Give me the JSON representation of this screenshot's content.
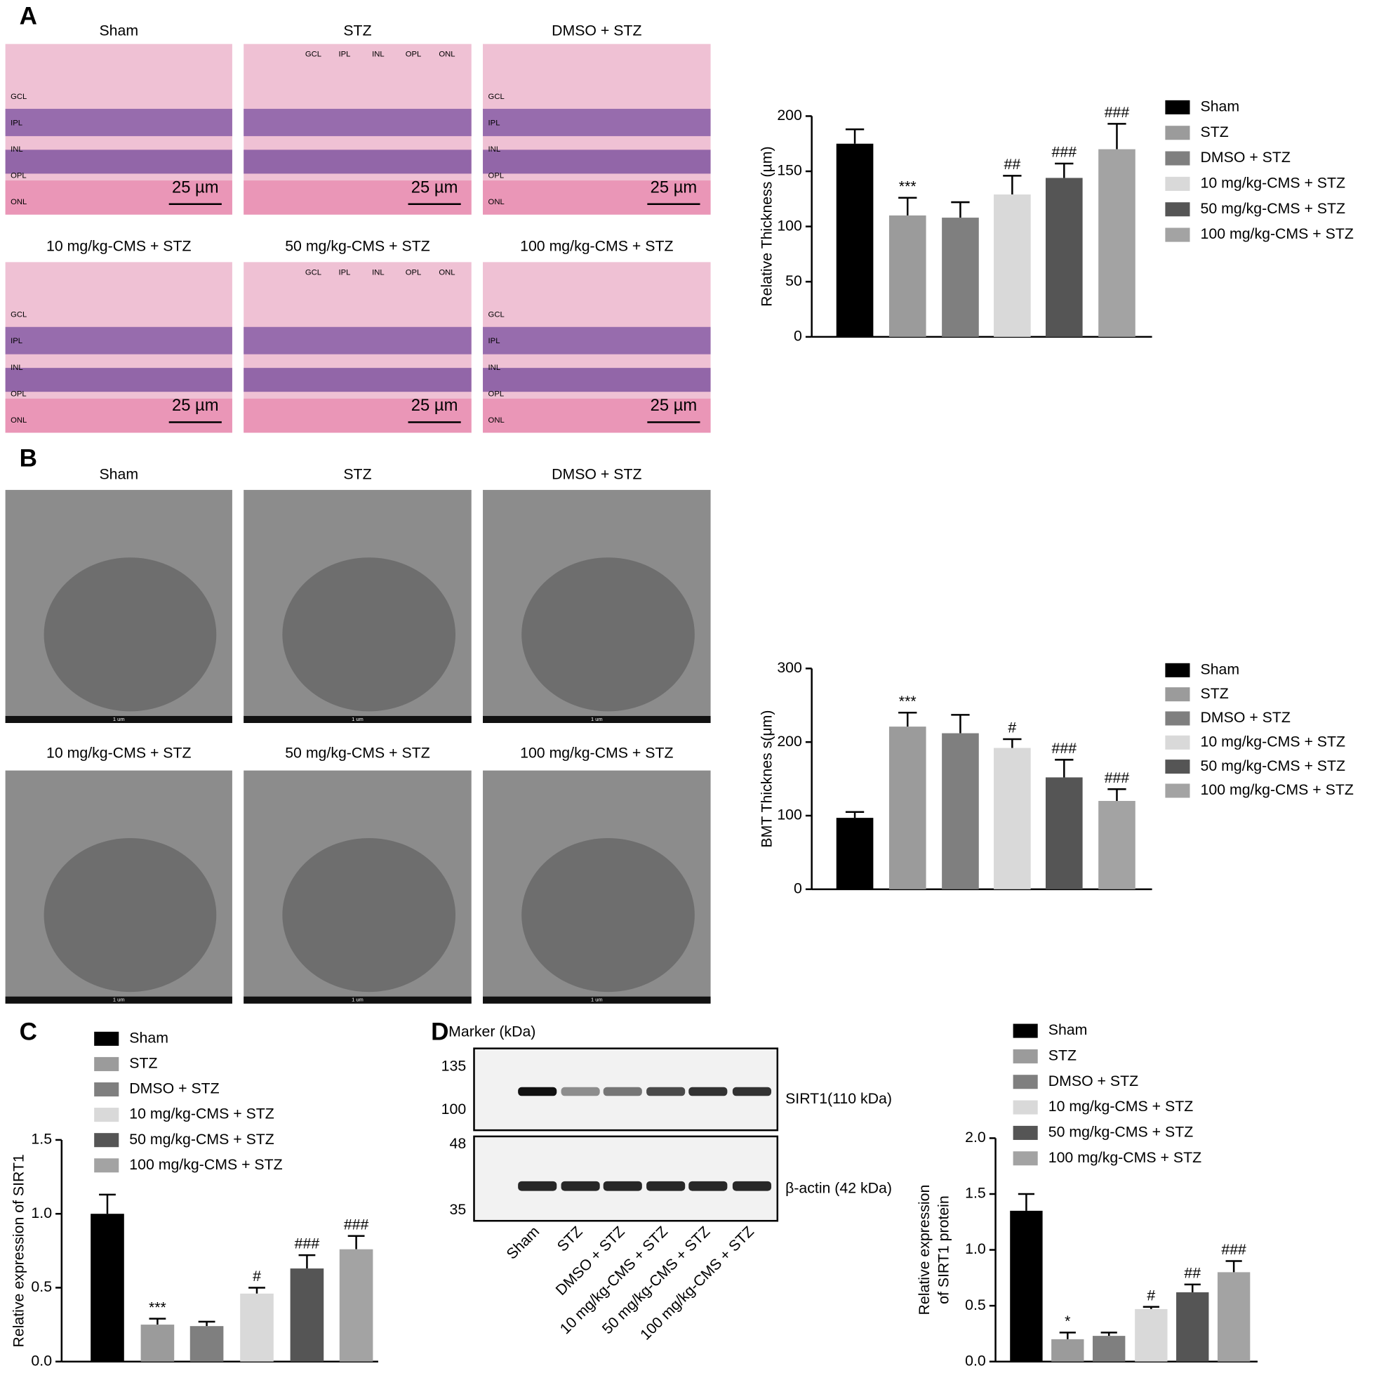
{
  "panel_labels": [
    "A",
    "B",
    "C",
    "D"
  ],
  "micrographs_a": [
    {
      "title": "Sham",
      "scale_label": "25 µm",
      "layers": [
        "GCL",
        "IPL",
        "INL",
        "OPL",
        "ONL"
      ]
    },
    {
      "title": "STZ",
      "scale_label": "25 µm",
      "layers": [
        "GCL",
        "IPL",
        "INL",
        "OPL",
        "ONL"
      ]
    },
    {
      "title": "DMSO + STZ",
      "scale_label": "25 µm",
      "layers": [
        "GCL",
        "IPL",
        "INL",
        "OPL",
        "ONL"
      ]
    },
    {
      "title": "10 mg/kg-CMS + STZ",
      "scale_label": "25 µm",
      "layers": [
        "GCL",
        "IPL",
        "INL",
        "OPL",
        "ONL"
      ]
    },
    {
      "title": "50 mg/kg-CMS + STZ",
      "scale_label": "25 µm",
      "layers": [
        "GCL",
        "IPL",
        "INL",
        "OPL",
        "ONL"
      ]
    },
    {
      "title": "100 mg/kg-CMS + STZ",
      "scale_label": "25 µm",
      "layers": [
        "GCL",
        "IPL",
        "INL",
        "OPL",
        "ONL"
      ]
    }
  ],
  "micrographs_b": [
    {
      "title": "Sham",
      "scale_label": "1 um"
    },
    {
      "title": "STZ",
      "scale_label": "1 um"
    },
    {
      "title": "DMSO + STZ",
      "scale_label": "1 um"
    },
    {
      "title": "10 mg/kg-CMS + STZ",
      "scale_label": "1 um"
    },
    {
      "title": "50 mg/kg-CMS + STZ",
      "scale_label": "1 um"
    },
    {
      "title": "100 mg/kg-CMS + STZ",
      "scale_label": "1 um"
    }
  ],
  "western_blot": {
    "marker_title": "Marker (kDa)",
    "markers": [
      135,
      100,
      48,
      35
    ],
    "bands": [
      "SIRT1(110 kDa)",
      "β-actin (42 kDa)"
    ],
    "lanes": [
      "Sham",
      "STZ",
      "DMSO + STZ",
      "10 mg/kg-CMS + STZ",
      "50 mg/kg-CMS + STZ",
      "100 mg/kg-CMS + STZ"
    ]
  },
  "chart_data": [
    {
      "type": "bar",
      "ylabel": "Relative Thickness (µm)",
      "categories": [
        "Sham",
        "STZ",
        "DMSO + STZ",
        "10 mg/kg-CMS + STZ",
        "50 mg/kg-CMS + STZ",
        "100 mg/kg-CMS + STZ"
      ],
      "colors": [
        "#000000",
        "#9b9b9b",
        "#7f7f7f",
        "#d9d9d9",
        "#555555",
        "#a3a3a3"
      ],
      "values": [
        175,
        110,
        108,
        129,
        144,
        170
      ],
      "errors": [
        13,
        16,
        14,
        17,
        13,
        23
      ],
      "annotations": [
        null,
        "***",
        null,
        "##",
        "###",
        "###"
      ],
      "ylim": [
        0,
        200
      ],
      "yticks": [
        0,
        50,
        100,
        150,
        200
      ]
    },
    {
      "type": "bar",
      "ylabel": "BMT Thicknes s(μm)",
      "categories": [
        "Sham",
        "STZ",
        "DMSO + STZ",
        "10 mg/kg-CMS + STZ",
        "50 mg/kg-CMS + STZ",
        "100 mg/kg-CMS + STZ"
      ],
      "colors": [
        "#000000",
        "#9b9b9b",
        "#7f7f7f",
        "#d9d9d9",
        "#555555",
        "#a3a3a3"
      ],
      "values": [
        97,
        221,
        212,
        192,
        152,
        120
      ],
      "errors": [
        8,
        19,
        25,
        12,
        24,
        16
      ],
      "annotations": [
        null,
        "***",
        null,
        "#",
        "###",
        "###"
      ],
      "ylim": [
        0,
        300
      ],
      "yticks": [
        0,
        100,
        200,
        300
      ]
    },
    {
      "type": "bar",
      "ylabel": "Relative expression of SIRT1",
      "categories": [
        "Sham",
        "STZ",
        "DMSO + STZ",
        "10 mg/kg-CMS + STZ",
        "50 mg/kg-CMS + STZ",
        "100 mg/kg-CMS + STZ"
      ],
      "colors": [
        "#000000",
        "#9b9b9b",
        "#7f7f7f",
        "#d9d9d9",
        "#555555",
        "#a3a3a3"
      ],
      "values": [
        1.0,
        0.25,
        0.24,
        0.46,
        0.63,
        0.76
      ],
      "errors": [
        0.13,
        0.04,
        0.03,
        0.04,
        0.09,
        0.09
      ],
      "annotations": [
        null,
        "***",
        null,
        "#",
        "###",
        "###"
      ],
      "ylim": [
        0,
        1.5
      ],
      "yticks": [
        {
          "value": 0,
          "label": "0.0"
        },
        0.5,
        {
          "value": 1,
          "label": "1.0"
        },
        1.5
      ]
    },
    {
      "type": "bar",
      "ylabel": [
        "Relative expression",
        "of SIRT1 protein"
      ],
      "categories": [
        "Sham",
        "STZ",
        "DMSO + STZ",
        "10 mg/kg-CMS + STZ",
        "50 mg/kg-CMS + STZ",
        "100 mg/kg-CMS + STZ"
      ],
      "colors": [
        "#000000",
        "#9b9b9b",
        "#7f7f7f",
        "#d9d9d9",
        "#555555",
        "#a3a3a3"
      ],
      "values": [
        1.35,
        0.2,
        0.23,
        0.47,
        0.62,
        0.8
      ],
      "errors": [
        0.15,
        0.06,
        0.03,
        0.02,
        0.07,
        0.1
      ],
      "annotations": [
        null,
        "*",
        null,
        "#",
        "##",
        "###"
      ],
      "ylim": [
        0,
        2
      ],
      "yticks": [
        {
          "value": 0,
          "label": "0.0"
        },
        0.5,
        {
          "value": 1,
          "label": "1.0"
        },
        1.5,
        {
          "value": 2,
          "label": "2.0"
        }
      ]
    }
  ]
}
